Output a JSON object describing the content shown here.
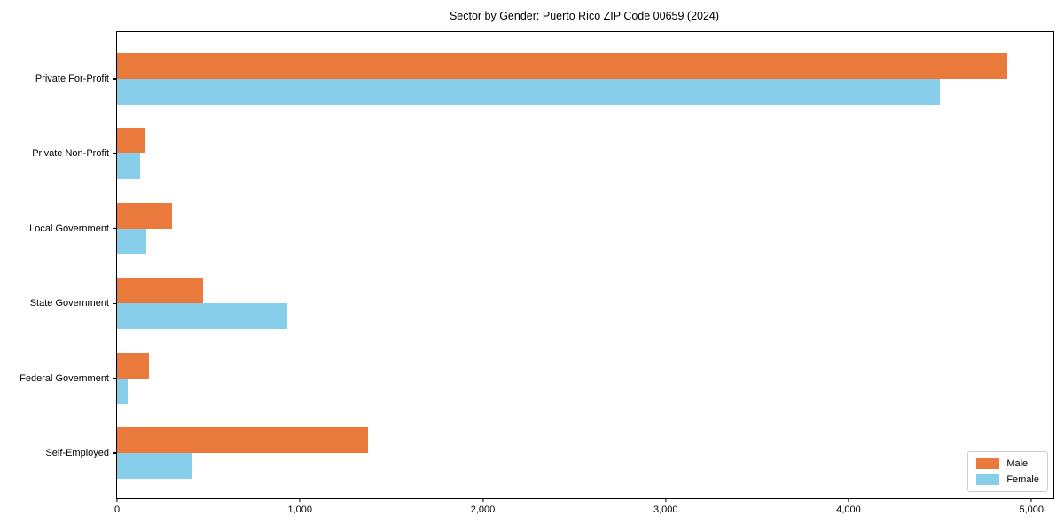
{
  "chart_data": {
    "type": "bar",
    "orientation": "horizontal",
    "title": "Sector by Gender: Puerto Rico ZIP Code 00659 (2024)",
    "xlabel": "",
    "ylabel": "",
    "grid": false,
    "legend_position": "lower right",
    "xlim": [
      0,
      5120
    ],
    "categories": [
      "Private For-Profit",
      "Private Non-Profit",
      "Local Government",
      "State Government",
      "Federal Government",
      "Self-Employed"
    ],
    "series": [
      {
        "name": "Male",
        "color": "#E97A3C",
        "values": [
          4870,
          150,
          300,
          470,
          175,
          1370
        ]
      },
      {
        "name": "Female",
        "color": "#87CEEB",
        "values": [
          4500,
          125,
          160,
          930,
          60,
          410
        ]
      }
    ],
    "xticks": [
      {
        "value": 0,
        "label": "0"
      },
      {
        "value": 1000,
        "label": "1,000"
      },
      {
        "value": 2000,
        "label": "2,000"
      },
      {
        "value": 3000,
        "label": "3,000"
      },
      {
        "value": 4000,
        "label": "4,000"
      },
      {
        "value": 5000,
        "label": "5,000"
      }
    ]
  }
}
